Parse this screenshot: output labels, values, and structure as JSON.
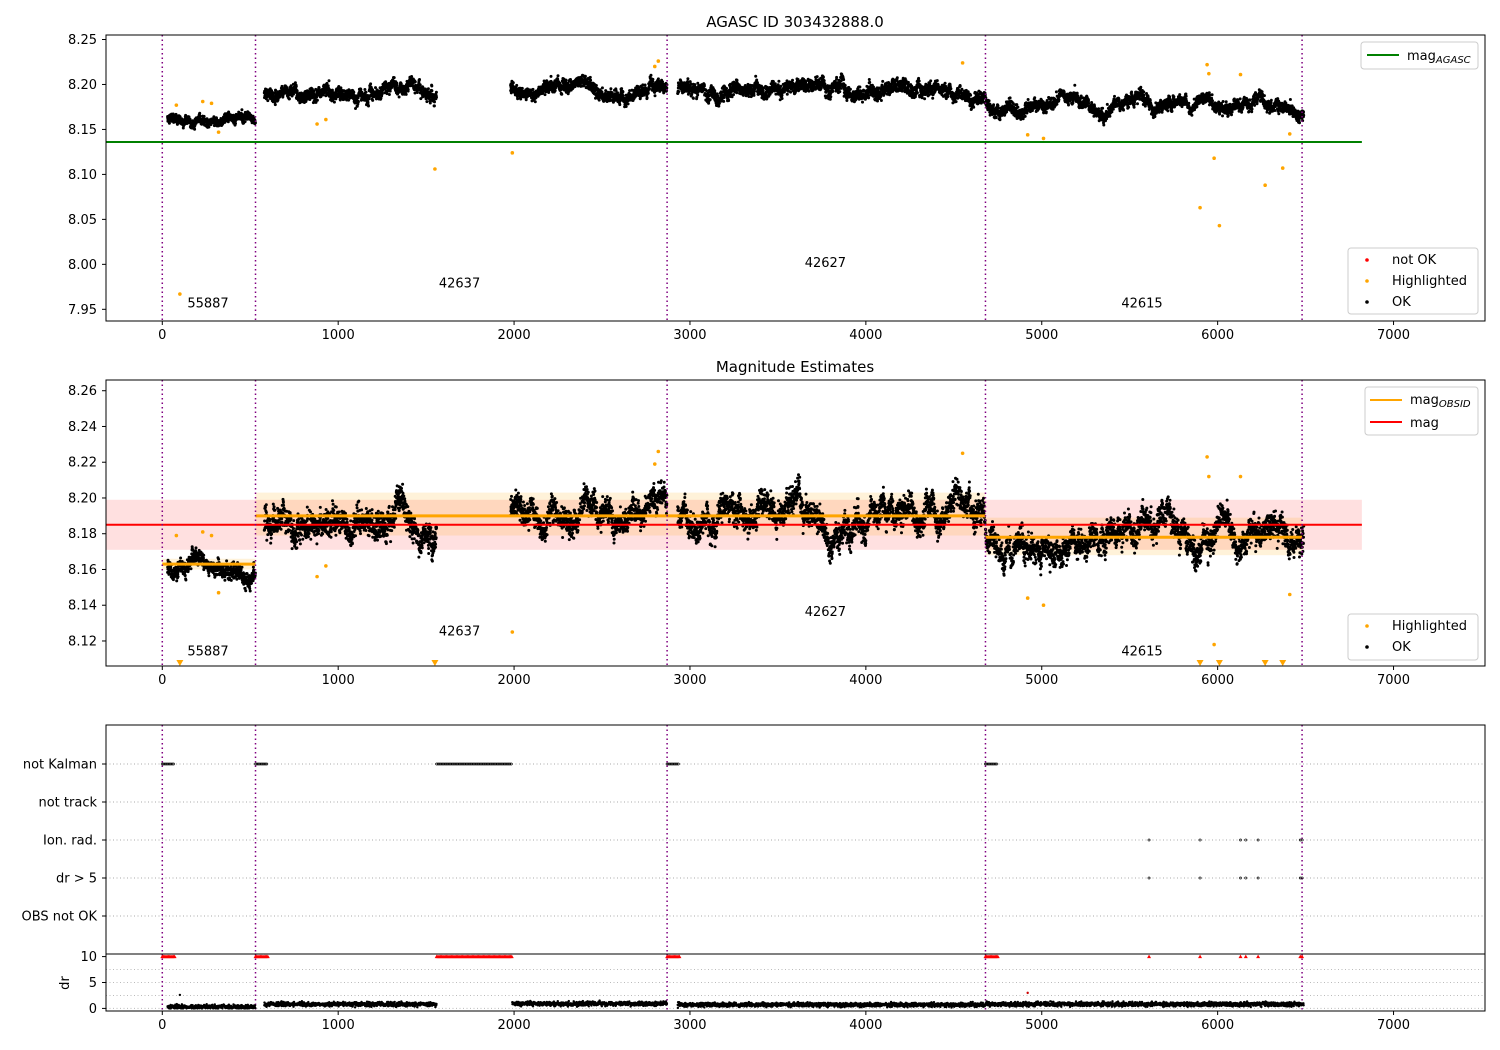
{
  "chart_data": [
    {
      "type": "scatter",
      "title": "AGASC ID 303432888.0",
      "xlabel": "",
      "ylabel": "",
      "xlim": [
        -320,
        7520
      ],
      "ylim": [
        7.937,
        8.255
      ],
      "xticks": [
        0,
        1000,
        2000,
        3000,
        4000,
        5000,
        6000,
        7000
      ],
      "yticks": [
        7.95,
        8.0,
        8.05,
        8.1,
        8.15,
        8.2,
        8.25
      ],
      "ytick_labels": [
        "7.95",
        "8.00",
        "8.05",
        "8.10",
        "8.15",
        "8.20",
        "8.25"
      ],
      "obs_boundaries": [
        0,
        530,
        2870,
        4680,
        6480
      ],
      "obs_labels": [
        {
          "text": "55887",
          "x": 260,
          "y": 7.952
        },
        {
          "text": "42637",
          "x": 1690,
          "y": 7.974
        },
        {
          "text": "42627",
          "x": 3770,
          "y": 7.997
        },
        {
          "text": "42615",
          "x": 5570,
          "y": 7.952
        }
      ],
      "reference_line": {
        "name": "mag_AGASC",
        "y": 8.136,
        "x": [
          -320,
          6820
        ]
      },
      "ok_segments": [
        {
          "x": [
            30,
            530
          ],
          "mean": 8.163,
          "spread": 0.007
        },
        {
          "x": [
            580,
            1560
          ],
          "mean": 8.19,
          "spread": 0.01
        },
        {
          "x": [
            1980,
            2870
          ],
          "mean": 8.195,
          "spread": 0.01
        },
        {
          "x": [
            2930,
            4680
          ],
          "mean": 8.193,
          "spread": 0.011
        },
        {
          "x": [
            4680,
            6490
          ],
          "mean": 8.18,
          "spread": 0.01
        }
      ],
      "highlighted": [
        {
          "x": 80,
          "y": 8.177
        },
        {
          "x": 100,
          "y": 7.967
        },
        {
          "x": 230,
          "y": 8.181
        },
        {
          "x": 280,
          "y": 8.179
        },
        {
          "x": 320,
          "y": 8.147
        },
        {
          "x": 880,
          "y": 8.156
        },
        {
          "x": 930,
          "y": 8.161
        },
        {
          "x": 1550,
          "y": 8.106
        },
        {
          "x": 1990,
          "y": 8.124
        },
        {
          "x": 2800,
          "y": 8.22
        },
        {
          "x": 2820,
          "y": 8.226
        },
        {
          "x": 4550,
          "y": 8.224
        },
        {
          "x": 4920,
          "y": 8.144
        },
        {
          "x": 5010,
          "y": 8.14
        },
        {
          "x": 5900,
          "y": 8.063
        },
        {
          "x": 5940,
          "y": 8.222
        },
        {
          "x": 5950,
          "y": 8.212
        },
        {
          "x": 5980,
          "y": 8.118
        },
        {
          "x": 6010,
          "y": 8.043
        },
        {
          "x": 6130,
          "y": 8.211
        },
        {
          "x": 6270,
          "y": 8.088
        },
        {
          "x": 6370,
          "y": 8.107
        },
        {
          "x": 6410,
          "y": 8.145
        }
      ],
      "legend_top": {
        "position": "upper right",
        "entries": [
          {
            "label": "mag",
            "sub": "AGASC",
            "color": "#008000"
          }
        ]
      },
      "legend_bottom": {
        "position": "lower right",
        "entries": [
          {
            "label": "not OK",
            "color": "#ff0000"
          },
          {
            "label": "Highlighted",
            "color": "#ffa500"
          },
          {
            "label": "OK",
            "color": "#000000"
          }
        ]
      }
    },
    {
      "type": "scatter",
      "title": "Magnitude Estimates",
      "xlabel": "",
      "ylabel": "",
      "xlim": [
        -320,
        7520
      ],
      "ylim": [
        8.106,
        8.266
      ],
      "xticks": [
        0,
        1000,
        2000,
        3000,
        4000,
        5000,
        6000,
        7000
      ],
      "yticks": [
        8.12,
        8.14,
        8.16,
        8.18,
        8.2,
        8.22,
        8.24,
        8.26
      ],
      "ytick_labels": [
        "8.12",
        "8.14",
        "8.16",
        "8.18",
        "8.20",
        "8.22",
        "8.24",
        "8.26"
      ],
      "obs_boundaries": [
        0,
        530,
        2870,
        4680,
        6480
      ],
      "obs_labels": [
        {
          "text": "55887",
          "x": 260,
          "y": 8.112
        },
        {
          "text": "42637",
          "x": 1690,
          "y": 8.123
        },
        {
          "text": "42627",
          "x": 3770,
          "y": 8.134
        },
        {
          "text": "42615",
          "x": 5570,
          "y": 8.112
        }
      ],
      "mag_line": {
        "name": "mag",
        "y": 8.185,
        "band": [
          8.171,
          8.199
        ],
        "x": [
          -320,
          6820
        ]
      },
      "obsid_means": [
        {
          "x": [
            0,
            530
          ],
          "y": 8.163,
          "band": [
            8.16,
            8.166
          ]
        },
        {
          "x": [
            530,
            4680
          ],
          "y": 8.19,
          "band": [
            8.179,
            8.203
          ]
        },
        {
          "x": [
            4680,
            6480
          ],
          "y": 8.178,
          "band": [
            8.168,
            8.189
          ]
        }
      ],
      "ok_segments": [
        {
          "x": [
            30,
            530
          ],
          "mean": 8.163,
          "spread": 0.007
        },
        {
          "x": [
            580,
            1560
          ],
          "mean": 8.188,
          "spread": 0.011
        },
        {
          "x": [
            1980,
            2870
          ],
          "mean": 8.192,
          "spread": 0.01
        },
        {
          "x": [
            2930,
            4680
          ],
          "mean": 8.191,
          "spread": 0.011
        },
        {
          "x": [
            4680,
            6490
          ],
          "mean": 8.178,
          "spread": 0.011
        }
      ],
      "highlighted": [
        {
          "x": 80,
          "y": 8.179
        },
        {
          "x": 230,
          "y": 8.181
        },
        {
          "x": 280,
          "y": 8.179
        },
        {
          "x": 320,
          "y": 8.147
        },
        {
          "x": 880,
          "y": 8.156
        },
        {
          "x": 930,
          "y": 8.162
        },
        {
          "x": 1990,
          "y": 8.125
        },
        {
          "x": 2800,
          "y": 8.219
        },
        {
          "x": 2820,
          "y": 8.226
        },
        {
          "x": 4550,
          "y": 8.225
        },
        {
          "x": 4920,
          "y": 8.144
        },
        {
          "x": 5010,
          "y": 8.14
        },
        {
          "x": 5940,
          "y": 8.223
        },
        {
          "x": 5950,
          "y": 8.212
        },
        {
          "x": 5980,
          "y": 8.118
        },
        {
          "x": 6130,
          "y": 8.212
        },
        {
          "x": 6410,
          "y": 8.146
        }
      ],
      "below_range_markers": [
        100,
        1550,
        5900,
        6010,
        6270,
        6370
      ],
      "legend_top": {
        "position": "upper right",
        "entries": [
          {
            "label": "mag",
            "sub": "OBSID",
            "color": "#ffa500"
          },
          {
            "label": "mag",
            "sub": "",
            "color": "#ff0000"
          }
        ]
      },
      "legend_bottom": {
        "position": "lower right",
        "entries": [
          {
            "label": "Highlighted",
            "color": "#ffa500"
          },
          {
            "label": "OK",
            "color": "#000000"
          }
        ]
      }
    },
    {
      "type": "scatter",
      "title": "",
      "xlabel": "",
      "ylabel": "",
      "xlim": [
        -320,
        7520
      ],
      "categories": [
        "not Kalman",
        "not track",
        "Ion. rad.",
        "dr > 5",
        "OBS not OK"
      ],
      "flags": {
        "not Kalman": [
          [
            0,
            70
          ],
          [
            530,
            600
          ],
          [
            1560,
            1990
          ],
          [
            2870,
            2940
          ],
          [
            4680,
            4750
          ]
        ],
        "not track": [],
        "Ion. rad.": [
          5610,
          5900,
          6130,
          6160,
          6230,
          6470,
          6480
        ],
        "dr > 5": [
          5610,
          5900,
          6130,
          6160,
          6230,
          6470,
          6480
        ],
        "OBS not OK": []
      },
      "obs_boundaries": [
        0,
        530,
        2870,
        4680,
        6480
      ]
    },
    {
      "type": "scatter",
      "title": "",
      "xlabel": "",
      "ylabel": "dr",
      "xlim": [
        -320,
        7520
      ],
      "ylim": [
        -0.5,
        10.5
      ],
      "yticks": [
        0,
        5,
        10
      ],
      "ytick_labels": [
        "0",
        "5",
        "10"
      ],
      "clipped_at_10": [
        [
          0,
          70
        ],
        [
          530,
          600
        ],
        [
          1560,
          1990
        ],
        [
          2870,
          2940
        ],
        [
          4680,
          4750
        ],
        5610,
        5900,
        6130,
        6160,
        6230,
        6470,
        6480
      ],
      "ok_segments": [
        {
          "x": [
            30,
            530
          ],
          "mean": 0.3
        },
        {
          "x": [
            580,
            1560
          ],
          "mean": 0.8
        },
        {
          "x": [
            1990,
            2870
          ],
          "mean": 0.9
        },
        {
          "x": [
            2930,
            4680
          ],
          "mean": 0.7
        },
        {
          "x": [
            4680,
            6490
          ],
          "mean": 0.8
        }
      ],
      "outliers": [
        {
          "x": 100,
          "y": 2.6
        },
        {
          "x": 4920,
          "y": 3.0
        }
      ],
      "obs_boundaries": [
        0,
        530,
        2870,
        4680,
        6480
      ]
    }
  ]
}
